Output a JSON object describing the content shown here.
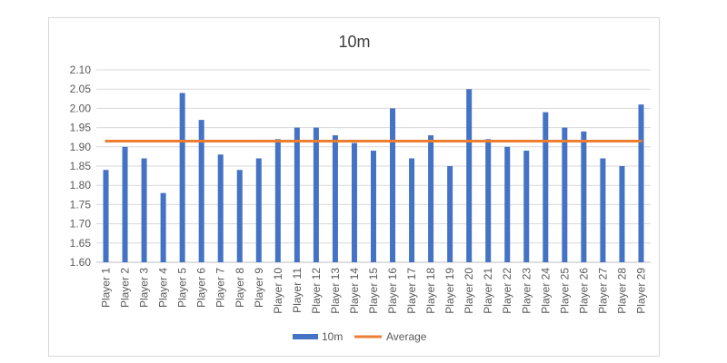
{
  "chart_data": {
    "type": "bar",
    "title": "10m",
    "xlabel": "",
    "ylabel": "",
    "ylim": [
      1.6,
      2.1
    ],
    "ytick_step": 0.05,
    "grid": true,
    "legend_position": "bottom",
    "categories": [
      "Player 1",
      "Player 2",
      "Player 3",
      "Player 4",
      "Player 5",
      "Player 6",
      "Player 7",
      "Player 8",
      "Player 9",
      "Player 10",
      "Player 11",
      "Player 12",
      "Player 13",
      "Player 14",
      "Player 15",
      "Player 16",
      "Player 17",
      "Player 18",
      "Player 19",
      "Player 20",
      "Player 21",
      "Player 22",
      "Player 23",
      "Player 24",
      "Player 25",
      "Player 26",
      "Player 27",
      "Player 28",
      "Player 29"
    ],
    "series": [
      {
        "name": "10m",
        "type": "bar",
        "color": "#4472c4",
        "values": [
          1.84,
          1.9,
          1.87,
          1.78,
          2.04,
          1.97,
          1.88,
          1.84,
          1.87,
          1.92,
          1.95,
          1.95,
          1.93,
          1.91,
          1.89,
          2.0,
          1.87,
          1.93,
          1.85,
          2.05,
          1.92,
          1.9,
          1.89,
          1.99,
          1.95,
          1.94,
          1.87,
          1.85,
          2.01
        ]
      },
      {
        "name": "Average",
        "type": "line",
        "color": "#ed7d31",
        "value": 1.915
      }
    ]
  }
}
